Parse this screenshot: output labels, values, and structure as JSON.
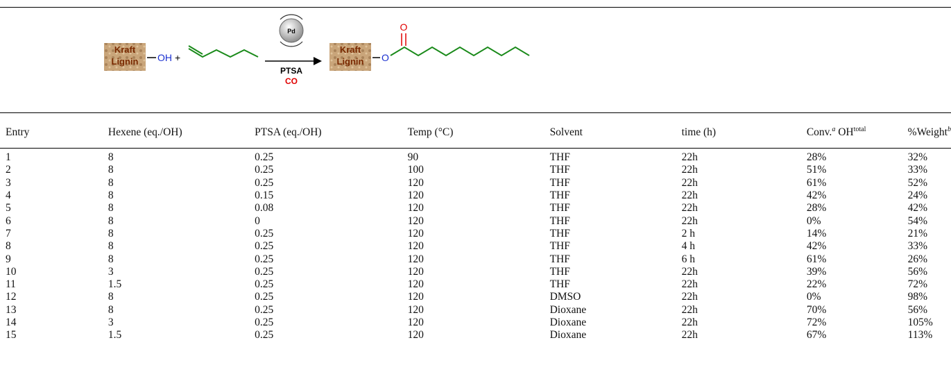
{
  "scheme": {
    "lignin_top": "Kraft",
    "lignin_bottom": "Lignin",
    "oh": "OH",
    "plus": "+",
    "catalyst": "Pd",
    "acid": "PTSA",
    "gas": "CO",
    "ester_o": "O",
    "carbonyl_o": "O"
  },
  "table": {
    "headers": [
      "Entry",
      "Hexene (eq./OH)",
      "PTSA (eq./OH)",
      "Temp (°C)",
      "Solvent",
      "time (h)",
      [
        {
          "text": "Conv."
        },
        {
          "sup": "a"
        },
        {
          "text": " OH"
        },
        {
          "sup": "total"
        }
      ],
      [
        {
          "text": "%Weight"
        },
        {
          "sup": "b"
        }
      ]
    ],
    "rows": [
      [
        "1",
        "8",
        "0.25",
        "90",
        "THF",
        "22h",
        "28%",
        "32%"
      ],
      [
        "2",
        "8",
        "0.25",
        "100",
        "THF",
        "22h",
        "51%",
        "33%"
      ],
      [
        "3",
        "8",
        "0.25",
        "120",
        "THF",
        "22h",
        "61%",
        "52%"
      ],
      [
        "4",
        "8",
        "0.15",
        "120",
        "THF",
        "22h",
        "42%",
        "24%"
      ],
      [
        "5",
        "8",
        "0.08",
        "120",
        "THF",
        "22h",
        "28%",
        "42%"
      ],
      [
        "6",
        "8",
        "0",
        "120",
        "THF",
        "22h",
        "0%",
        "54%"
      ],
      [
        "7",
        "8",
        "0.25",
        "120",
        "THF",
        "2 h",
        "14%",
        "21%"
      ],
      [
        "8",
        "8",
        "0.25",
        "120",
        "THF",
        "4 h",
        "42%",
        "33%"
      ],
      [
        "9",
        "8",
        "0.25",
        "120",
        "THF",
        "6 h",
        "61%",
        "26%"
      ],
      [
        "10",
        "3",
        "0.25",
        "120",
        "THF",
        "22h",
        "39%",
        "56%"
      ],
      [
        "11",
        "1.5",
        "0.25",
        "120",
        "THF",
        "22h",
        "22%",
        "72%"
      ],
      [
        "12",
        "8",
        "0.25",
        "120",
        "DMSO",
        "22h",
        "0%",
        "98%"
      ],
      [
        "13",
        "8",
        "0.25",
        "120",
        "Dioxane",
        "22h",
        "70%",
        "56%"
      ],
      [
        "14",
        "3",
        "0.25",
        "120",
        "Dioxane",
        "22h",
        "72%",
        "105%"
      ],
      [
        "15",
        "1.5",
        "0.25",
        "120",
        "Dioxane",
        "22h",
        "67%",
        "113%"
      ]
    ]
  }
}
